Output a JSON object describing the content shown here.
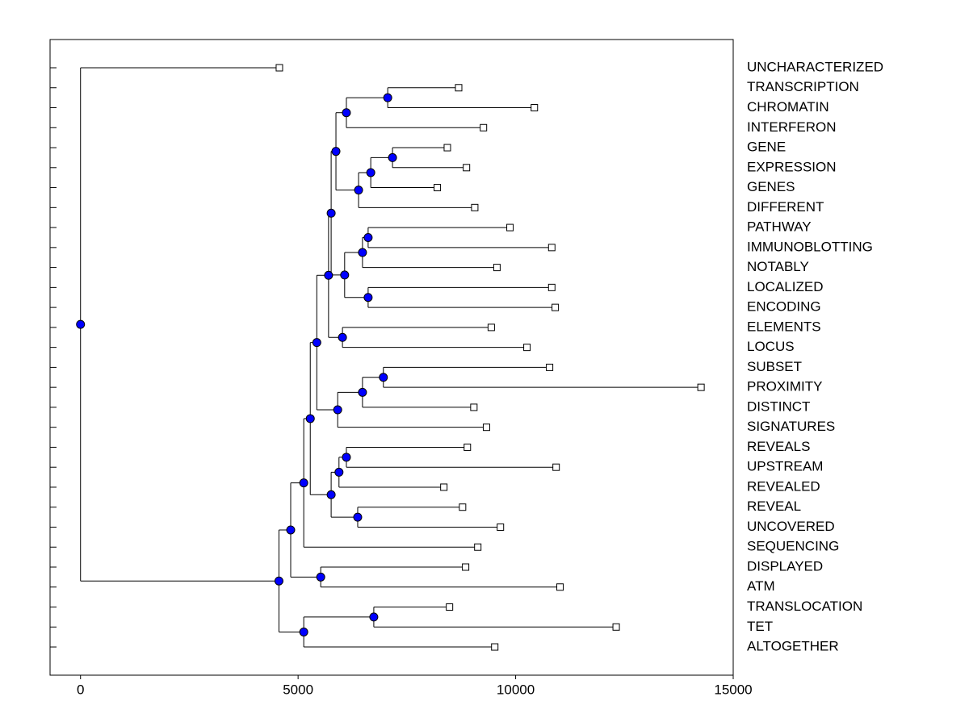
{
  "chart_data": {
    "type": "dendrogram",
    "xlim": [
      -700,
      15000
    ],
    "xticks": [
      0,
      5000,
      10000,
      15000
    ],
    "node_color": "#0000ff",
    "leaf_color": "#ffffff",
    "line_color": "#000000",
    "tree": {
      "value": 0,
      "children": [
        {
          "label": "UNCHARACTERIZED",
          "value": 4570
        },
        {
          "value": 4560,
          "children": [
            {
              "value": 4830,
              "children": [
                {
                  "value": 5130,
                  "children": [
                    {
                      "value": 5280,
                      "children": [
                        {
                          "value": 5430,
                          "children": [
                            {
                              "value": 5700,
                              "children": [
                                {
                                  "value": 5760,
                                  "children": [
                                    {
                                      "value": 5870,
                                      "children": [
                                        {
                                          "value": 6110,
                                          "children": [
                                            {
                                              "value": 7060,
                                              "children": [
                                                {
                                                  "label": "TRANSCRIPTION",
                                                  "value": 8690
                                                },
                                                {
                                                  "label": "CHROMATIN",
                                                  "value": 10430
                                                }
                                              ]
                                            },
                                            {
                                              "label": "INTERFERON",
                                              "value": 9260
                                            }
                                          ]
                                        },
                                        {
                                          "value": 6390,
                                          "children": [
                                            {
                                              "value": 6670,
                                              "children": [
                                                {
                                                  "value": 7170,
                                                  "children": [
                                                    {
                                                      "label": "GENE",
                                                      "value": 8430
                                                    },
                                                    {
                                                      "label": "EXPRESSION",
                                                      "value": 8870
                                                    }
                                                  ]
                                                },
                                                {
                                                  "label": "GENES",
                                                  "value": 8200
                                                }
                                              ]
                                            },
                                            {
                                              "label": "DIFFERENT",
                                              "value": 9060
                                            }
                                          ]
                                        }
                                      ]
                                    },
                                    {
                                      "value": 6070,
                                      "children": [
                                        {
                                          "value": 6480,
                                          "children": [
                                            {
                                              "value": 6610,
                                              "children": [
                                                {
                                                  "label": "PATHWAY",
                                                  "value": 9870
                                                },
                                                {
                                                  "label": "IMMUNOBLOTTING",
                                                  "value": 10830
                                                }
                                              ]
                                            },
                                            {
                                              "label": "NOTABLY",
                                              "value": 9570
                                            }
                                          ]
                                        },
                                        {
                                          "value": 6610,
                                          "children": [
                                            {
                                              "label": "LOCALIZED",
                                              "value": 10830
                                            },
                                            {
                                              "label": "ENCODING",
                                              "value": 10910
                                            }
                                          ]
                                        }
                                      ]
                                    }
                                  ]
                                },
                                {
                                  "value": 6020,
                                  "children": [
                                    {
                                      "label": "ELEMENTS",
                                      "value": 9440
                                    },
                                    {
                                      "label": "LOCUS",
                                      "value": 10260
                                    }
                                  ]
                                }
                              ]
                            },
                            {
                              "value": 5910,
                              "children": [
                                {
                                  "value": 6480,
                                  "children": [
                                    {
                                      "value": 6960,
                                      "children": [
                                        {
                                          "label": "SUBSET",
                                          "value": 10780
                                        },
                                        {
                                          "label": "PROXIMITY",
                                          "value": 14260
                                        }
                                      ]
                                    },
                                    {
                                      "label": "DISTINCT",
                                      "value": 9040
                                    }
                                  ]
                                },
                                {
                                  "label": "SIGNATURES",
                                  "value": 9330
                                }
                              ]
                            }
                          ]
                        },
                        {
                          "value": 5760,
                          "children": [
                            {
                              "value": 5940,
                              "children": [
                                {
                                  "value": 6110,
                                  "children": [
                                    {
                                      "label": "REVEALS",
                                      "value": 8890
                                    },
                                    {
                                      "label": "UPSTREAM",
                                      "value": 10930
                                    }
                                  ]
                                },
                                {
                                  "label": "REVEALED",
                                  "value": 8350
                                }
                              ]
                            },
                            {
                              "value": 6370,
                              "children": [
                                {
                                  "label": "REVEAL",
                                  "value": 8780
                                },
                                {
                                  "label": "UNCOVERED",
                                  "value": 9650
                                }
                              ]
                            }
                          ]
                        }
                      ]
                    },
                    {
                      "label": "SEQUENCING",
                      "value": 9130
                    }
                  ]
                },
                {
                  "value": 5520,
                  "children": [
                    {
                      "label": "DISPLAYED",
                      "value": 8850
                    },
                    {
                      "label": "ATM",
                      "value": 11020
                    }
                  ]
                }
              ]
            },
            {
              "value": 5130,
              "children": [
                {
                  "value": 6740,
                  "children": [
                    {
                      "label": "TRANSLOCATION",
                      "value": 8480
                    },
                    {
                      "label": "TET",
                      "value": 12310
                    }
                  ]
                },
                {
                  "label": "ALTOGETHER",
                  "value": 9520
                }
              ]
            }
          ]
        }
      ]
    }
  }
}
